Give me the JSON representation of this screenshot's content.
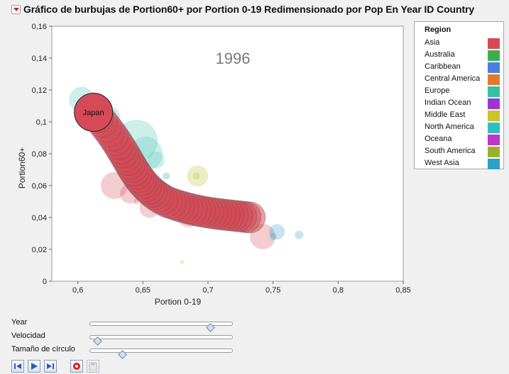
{
  "title": "Gráfico de burbujas de Portion60+ por Portion 0-19 Redimensionado por Pop En Year ID Country",
  "chart_data": {
    "type": "scatter",
    "subtype": "bubble",
    "year_label": "1996",
    "xlabel": "Portion 0-19",
    "ylabel": "Portion60+",
    "xlim": [
      0.58,
      0.85
    ],
    "ylim": [
      0,
      0.16
    ],
    "x_ticks": [
      0.6,
      0.65,
      0.7,
      0.75,
      0.8,
      0.85
    ],
    "x_tick_labels": [
      "0,6",
      "0,65",
      "0,7",
      "0,75",
      "0,8",
      "0,85"
    ],
    "y_ticks": [
      0,
      0.02,
      0.04,
      0.06,
      0.08,
      0.1,
      0.12,
      0.14,
      0.16
    ],
    "y_tick_labels": [
      "0",
      "0,02",
      "0,04",
      "0,06",
      "0,08",
      "0,1",
      "0,12",
      "0,14",
      "0,16"
    ],
    "grid": false,
    "legend_position": "right",
    "highlighted_label": "Japan",
    "highlight_color": "#d64a57",
    "trail": {
      "start": [
        0.612,
        0.106
      ],
      "c1": [
        0.642,
        0.08
      ],
      "c2": [
        0.64,
        0.062
      ],
      "bend": [
        0.668,
        0.05
      ],
      "c3": [
        0.69,
        0.043
      ],
      "c4": [
        0.71,
        0.042
      ],
      "end": [
        0.732,
        0.04
      ],
      "count": 46,
      "color": "#d64a57"
    },
    "background_bubbles": [
      {
        "x": 0.603,
        "y": 0.114,
        "size": 18,
        "color": "#4cc4b2"
      },
      {
        "x": 0.625,
        "y": 0.103,
        "size": 14,
        "color": "#4cc4b2"
      },
      {
        "x": 0.645,
        "y": 0.088,
        "size": 30,
        "color": "#4cc4b2"
      },
      {
        "x": 0.652,
        "y": 0.08,
        "size": 24,
        "color": "#4cc4b2"
      },
      {
        "x": 0.66,
        "y": 0.076,
        "size": 12,
        "color": "#4cc4b2"
      },
      {
        "x": 0.628,
        "y": 0.06,
        "size": 19,
        "color": "#d64a57"
      },
      {
        "x": 0.64,
        "y": 0.055,
        "size": 14,
        "color": "#d64a57"
      },
      {
        "x": 0.655,
        "y": 0.046,
        "size": 14,
        "color": "#d64a57"
      },
      {
        "x": 0.685,
        "y": 0.04,
        "size": 14,
        "color": "#d64a57"
      },
      {
        "x": 0.742,
        "y": 0.028,
        "size": 18,
        "color": "#d64a57"
      },
      {
        "x": 0.635,
        "y": 0.075,
        "size": 10,
        "color": "#d64a57"
      },
      {
        "x": 0.645,
        "y": 0.05,
        "size": 4,
        "color": "#d64a57"
      },
      {
        "x": 0.692,
        "y": 0.066,
        "size": 15,
        "color": "#b8bf2a"
      },
      {
        "x": 0.691,
        "y": 0.066,
        "size": 5,
        "color": "#b8bf2a"
      },
      {
        "x": 0.68,
        "y": 0.012,
        "size": 3,
        "color": "#b8bf2a"
      },
      {
        "x": 0.753,
        "y": 0.031,
        "size": 11,
        "color": "#2f9fc4"
      },
      {
        "x": 0.77,
        "y": 0.029,
        "size": 6,
        "color": "#2f9fc4"
      },
      {
        "x": 0.668,
        "y": 0.066,
        "size": 5,
        "color": "#2f9fc4"
      },
      {
        "x": 0.75,
        "y": 0.028,
        "size": 5,
        "color": "#2f9fc4"
      },
      {
        "x": 0.655,
        "y": 0.054,
        "size": 4,
        "color": "#2f9fc4"
      },
      {
        "x": 0.638,
        "y": 0.079,
        "size": 8,
        "color": "#a0a0a0"
      }
    ],
    "legend_title": "Region",
    "legend": [
      {
        "name": "Asia",
        "color": "#d64a57"
      },
      {
        "name": "Australia",
        "color": "#3fad4f"
      },
      {
        "name": "Caribbean",
        "color": "#4a7fe0"
      },
      {
        "name": "Central America",
        "color": "#e07a30"
      },
      {
        "name": "Europe",
        "color": "#35c1a0"
      },
      {
        "name": "Indian Ocean",
        "color": "#9b35d6"
      },
      {
        "name": "Middle East",
        "color": "#c8c42a"
      },
      {
        "name": "North America",
        "color": "#2fbfc0"
      },
      {
        "name": "Oceana",
        "color": "#c035c8"
      },
      {
        "name": "South America",
        "color": "#9ab02a"
      },
      {
        "name": "West Asia",
        "color": "#2f9fc4"
      }
    ]
  },
  "controls": {
    "sliders": [
      {
        "label": "Year",
        "value": 0.86
      },
      {
        "label": "Velocidad",
        "value": 0.04
      },
      {
        "label": "Tamaño de círculo",
        "value": 0.22
      }
    ]
  },
  "buttons": [
    {
      "icon": "step-back-icon"
    },
    {
      "icon": "play-icon"
    },
    {
      "icon": "step-forward-icon"
    },
    {
      "icon": "record-icon"
    },
    {
      "icon": "save-icon"
    }
  ]
}
